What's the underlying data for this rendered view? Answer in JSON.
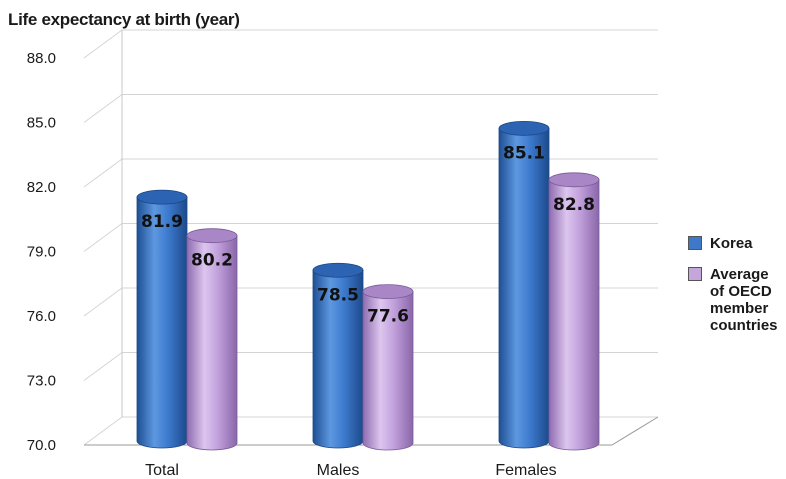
{
  "chart_data": {
    "type": "bar",
    "ylabel": "Life expectancy at birth (year)",
    "xlabel": "",
    "categories": [
      "Total",
      "Males",
      "Females"
    ],
    "series": [
      {
        "name": "Korea",
        "values": [
          81.9,
          78.5,
          85.1
        ],
        "color": "#3d78c9"
      },
      {
        "name": "Average of OECD member countries",
        "values": [
          80.2,
          77.6,
          82.8
        ],
        "color": "#c4a6dd"
      }
    ],
    "ylim": [
      70.0,
      88.0
    ],
    "yticks": [
      "70.0",
      "73.0",
      "76.0",
      "79.0",
      "82.0",
      "85.0",
      "88.0"
    ],
    "grid": true,
    "legend_position": "right",
    "style": "3d-cylinder"
  },
  "legend": {
    "korea": "Korea",
    "oecd_lines": [
      "Average",
      "of OECD",
      "member",
      "countries"
    ]
  }
}
